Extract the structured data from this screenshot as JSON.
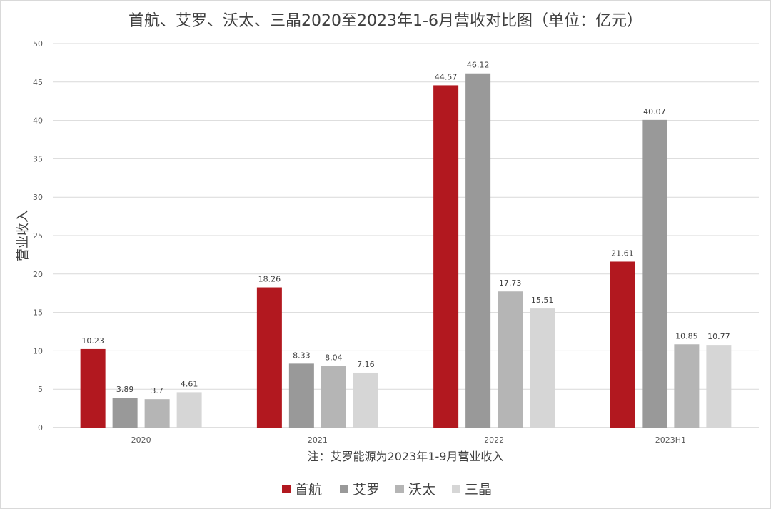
{
  "chart_data": {
    "type": "bar",
    "title": "首航、艾罗、沃太、三晶2020至2023年1-6月营收对比图（单位：亿元）",
    "ylabel": "营业收入",
    "xlabel": "注：艾罗能源为2023年1-9月营业收入",
    "categories": [
      "2020",
      "2021",
      "2022",
      "2023H1"
    ],
    "ylim": [
      0,
      50
    ],
    "yticks": [
      0,
      5,
      10,
      15,
      20,
      25,
      30,
      35,
      40,
      45,
      50
    ],
    "grid": true,
    "legend_position": "bottom",
    "series": [
      {
        "name": "首航",
        "color": "#b2181f",
        "values": [
          10.23,
          18.26,
          44.57,
          21.61
        ],
        "labels": [
          "10.23",
          "18.26",
          "44.57",
          "21.61"
        ]
      },
      {
        "name": "艾罗",
        "color": "#999999",
        "values": [
          3.89,
          8.33,
          46.12,
          40.07
        ],
        "labels": [
          "3.89",
          "8.33",
          "46.12",
          "40.07"
        ]
      },
      {
        "name": "沃太",
        "color": "#b5b5b5",
        "values": [
          3.7,
          8.04,
          17.73,
          10.85
        ],
        "labels": [
          "3.7",
          "8.04",
          "17.73",
          "10.85"
        ]
      },
      {
        "name": "三晶",
        "color": "#d6d6d6",
        "values": [
          4.61,
          7.16,
          15.51,
          10.77
        ],
        "labels": [
          "4.61",
          "7.16",
          "15.51",
          "10.77"
        ]
      }
    ]
  }
}
